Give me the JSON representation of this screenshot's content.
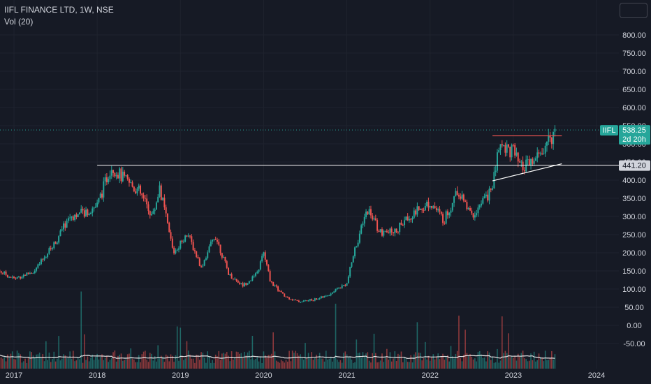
{
  "legend": {
    "symbol_line": "IIFL FINANCE LTD, 1W, NSE",
    "volume_line": "Vol (20)"
  },
  "colors": {
    "background": "#161a25",
    "up": "#26a69a",
    "down": "#ef5350",
    "grid": "#1f232e",
    "axis_text": "#d1d4dc",
    "resistance_line": "#ef5350",
    "support_line": "#ffffff",
    "price_tag": "#26a69a"
  },
  "chart_data": {
    "type": "candlestick",
    "symbol": "IIFL",
    "timeframe": "1W",
    "exchange": "NSE",
    "y_ticks": [
      "800.00",
      "750.00",
      "700.00",
      "650.00",
      "600.00",
      "550.00",
      "500.00",
      "450.00",
      "400.00",
      "350.00",
      "300.00",
      "250.00",
      "200.00",
      "150.00",
      "100.00",
      "50.00",
      "0.00",
      "-50.00"
    ],
    "x_ticks": [
      "2017",
      "2018",
      "2019",
      "2020",
      "2021",
      "2022",
      "2023",
      "2024"
    ],
    "ylim": [
      -70,
      850
    ],
    "current_price": {
      "label": "IIFL",
      "value": "538.25",
      "countdown": "2d 20h",
      "y": 538.25
    },
    "horizontal_level": {
      "label": "441.20",
      "y": 441.2,
      "from": "2018-01",
      "to": "2024-12"
    },
    "trendlines": [
      {
        "name": "resistance",
        "from": [
          "2022-10",
          522
        ],
        "to": [
          "2023-08",
          522
        ]
      },
      {
        "name": "rising-support",
        "from": [
          "2022-10",
          398
        ],
        "to": [
          "2023-08",
          445
        ]
      }
    ],
    "anchors": [
      [
        "2016-10",
        160
      ],
      [
        "2017-01",
        128
      ],
      [
        "2017-04",
        150
      ],
      [
        "2017-07",
        230
      ],
      [
        "2017-09",
        300
      ],
      [
        "2017-11",
        310
      ],
      [
        "2018-01",
        330
      ],
      [
        "2018-03",
        440
      ],
      [
        "2018-05",
        400
      ],
      [
        "2018-07",
        370
      ],
      [
        "2018-09",
        300
      ],
      [
        "2018-10",
        380
      ],
      [
        "2018-12",
        200
      ],
      [
        "2019-02",
        255
      ],
      [
        "2019-04",
        160
      ],
      [
        "2019-06",
        250
      ],
      [
        "2019-08",
        140
      ],
      [
        "2019-10",
        110
      ],
      [
        "2019-12",
        140
      ],
      [
        "2020-01",
        200
      ],
      [
        "2020-02",
        120
      ],
      [
        "2020-04",
        80
      ],
      [
        "2020-06",
        65
      ],
      [
        "2020-08",
        70
      ],
      [
        "2020-10",
        80
      ],
      [
        "2020-12",
        105
      ],
      [
        "2021-01",
        115
      ],
      [
        "2021-02",
        200
      ],
      [
        "2021-04",
        320
      ],
      [
        "2021-06",
        250
      ],
      [
        "2021-08",
        260
      ],
      [
        "2021-10",
        300
      ],
      [
        "2022-01",
        340
      ],
      [
        "2022-03",
        290
      ],
      [
        "2022-05",
        370
      ],
      [
        "2022-07",
        300
      ],
      [
        "2022-09",
        350
      ],
      [
        "2022-10",
        380
      ],
      [
        "2022-11",
        500
      ],
      [
        "2023-01",
        480
      ],
      [
        "2023-02",
        430
      ],
      [
        "2023-04",
        450
      ],
      [
        "2023-06",
        500
      ],
      [
        "2023-07",
        540
      ]
    ]
  }
}
